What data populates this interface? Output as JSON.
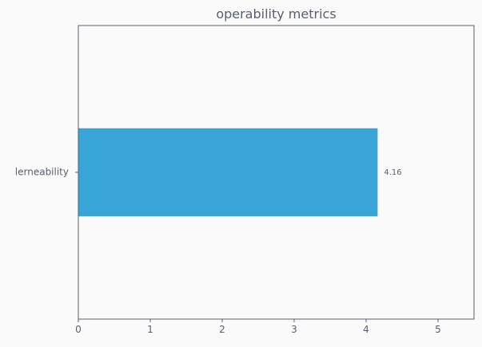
{
  "chart_data": {
    "type": "bar",
    "orientation": "horizontal",
    "title": "operability metrics",
    "categories": [
      "lerneability"
    ],
    "values": [
      4.16
    ],
    "data_labels": [
      "4.16"
    ],
    "xlim": [
      0,
      5.5
    ],
    "x_ticks": [
      0,
      1,
      2,
      3,
      4,
      5
    ],
    "x_tick_labels": [
      "0",
      "1",
      "2",
      "3",
      "4",
      "5"
    ],
    "xlabel": "",
    "ylabel": "",
    "grid": false,
    "legend": "none",
    "colors": {
      "bar": "#38a4d8",
      "axis": "#5a5f6e",
      "text": "#5a5f6e",
      "background": "#fafafa"
    }
  }
}
